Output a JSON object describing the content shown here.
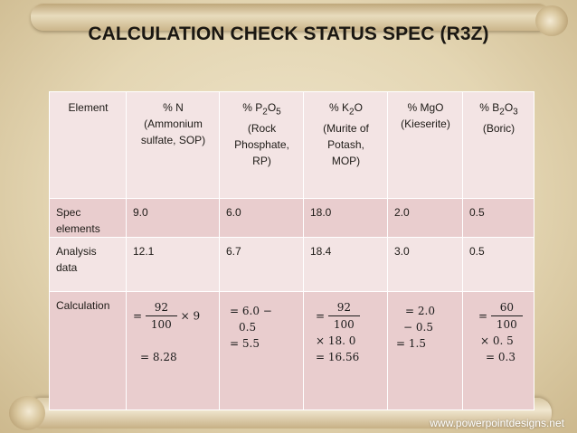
{
  "title": "CALCULATION CHECK STATUS SPEC (R3Z)",
  "table": {
    "headers": [
      {
        "lines": [
          "Element"
        ]
      },
      {
        "lines": [
          "% N",
          "(Ammonium",
          "sulfate,  SOP)"
        ]
      },
      {
        "parts": [
          "% P",
          "2",
          "O",
          "5"
        ],
        "lines": [
          "(Rock",
          "Phosphate,",
          "RP)"
        ]
      },
      {
        "parts": [
          "% K",
          "2",
          "O"
        ],
        "lines": [
          "(Murite of",
          "Potash,",
          "MOP)"
        ]
      },
      {
        "lines": [
          "% MgO",
          "(Kieserite)"
        ]
      },
      {
        "parts": [
          "% B",
          "2",
          "O",
          "3"
        ],
        "lines": [
          "(Boric)"
        ]
      }
    ],
    "rows": [
      {
        "label": [
          "Spec",
          "elements"
        ],
        "values": [
          "9.0",
          "6.0",
          "18.0",
          "2.0",
          "0.5"
        ]
      },
      {
        "label": [
          "Analysis",
          "data"
        ],
        "values": [
          "12.1",
          "6.7",
          "18.4",
          "3.0",
          "0.5"
        ]
      },
      {
        "label": [
          "Calculation"
        ]
      }
    ],
    "calculation": {
      "n": {
        "eq": "=",
        "num": "92",
        "den": "100",
        "rest": "× 9",
        "result": "= 8.28"
      },
      "p": {
        "l1": "= 6.0 −",
        "l2": "0.5",
        "l3": "= 5.5"
      },
      "k": {
        "eq": "=",
        "num": "92",
        "den": "100",
        "l2": "× 18. 0",
        "l3": "= 16.56"
      },
      "mg": {
        "l1": "= 2.0",
        "l2": "−  0.5",
        "l3": "= 1.5"
      },
      "b": {
        "eq": "=",
        "num": "60",
        "den": "100",
        "l2": "× 0. 5",
        "l3": "= 0.3"
      }
    }
  },
  "footer": "www.powerpointdesigns.net",
  "colors": {
    "row_dark": "#e9cdce",
    "row_light": "#f3e4e4",
    "title": "#1a1712"
  }
}
